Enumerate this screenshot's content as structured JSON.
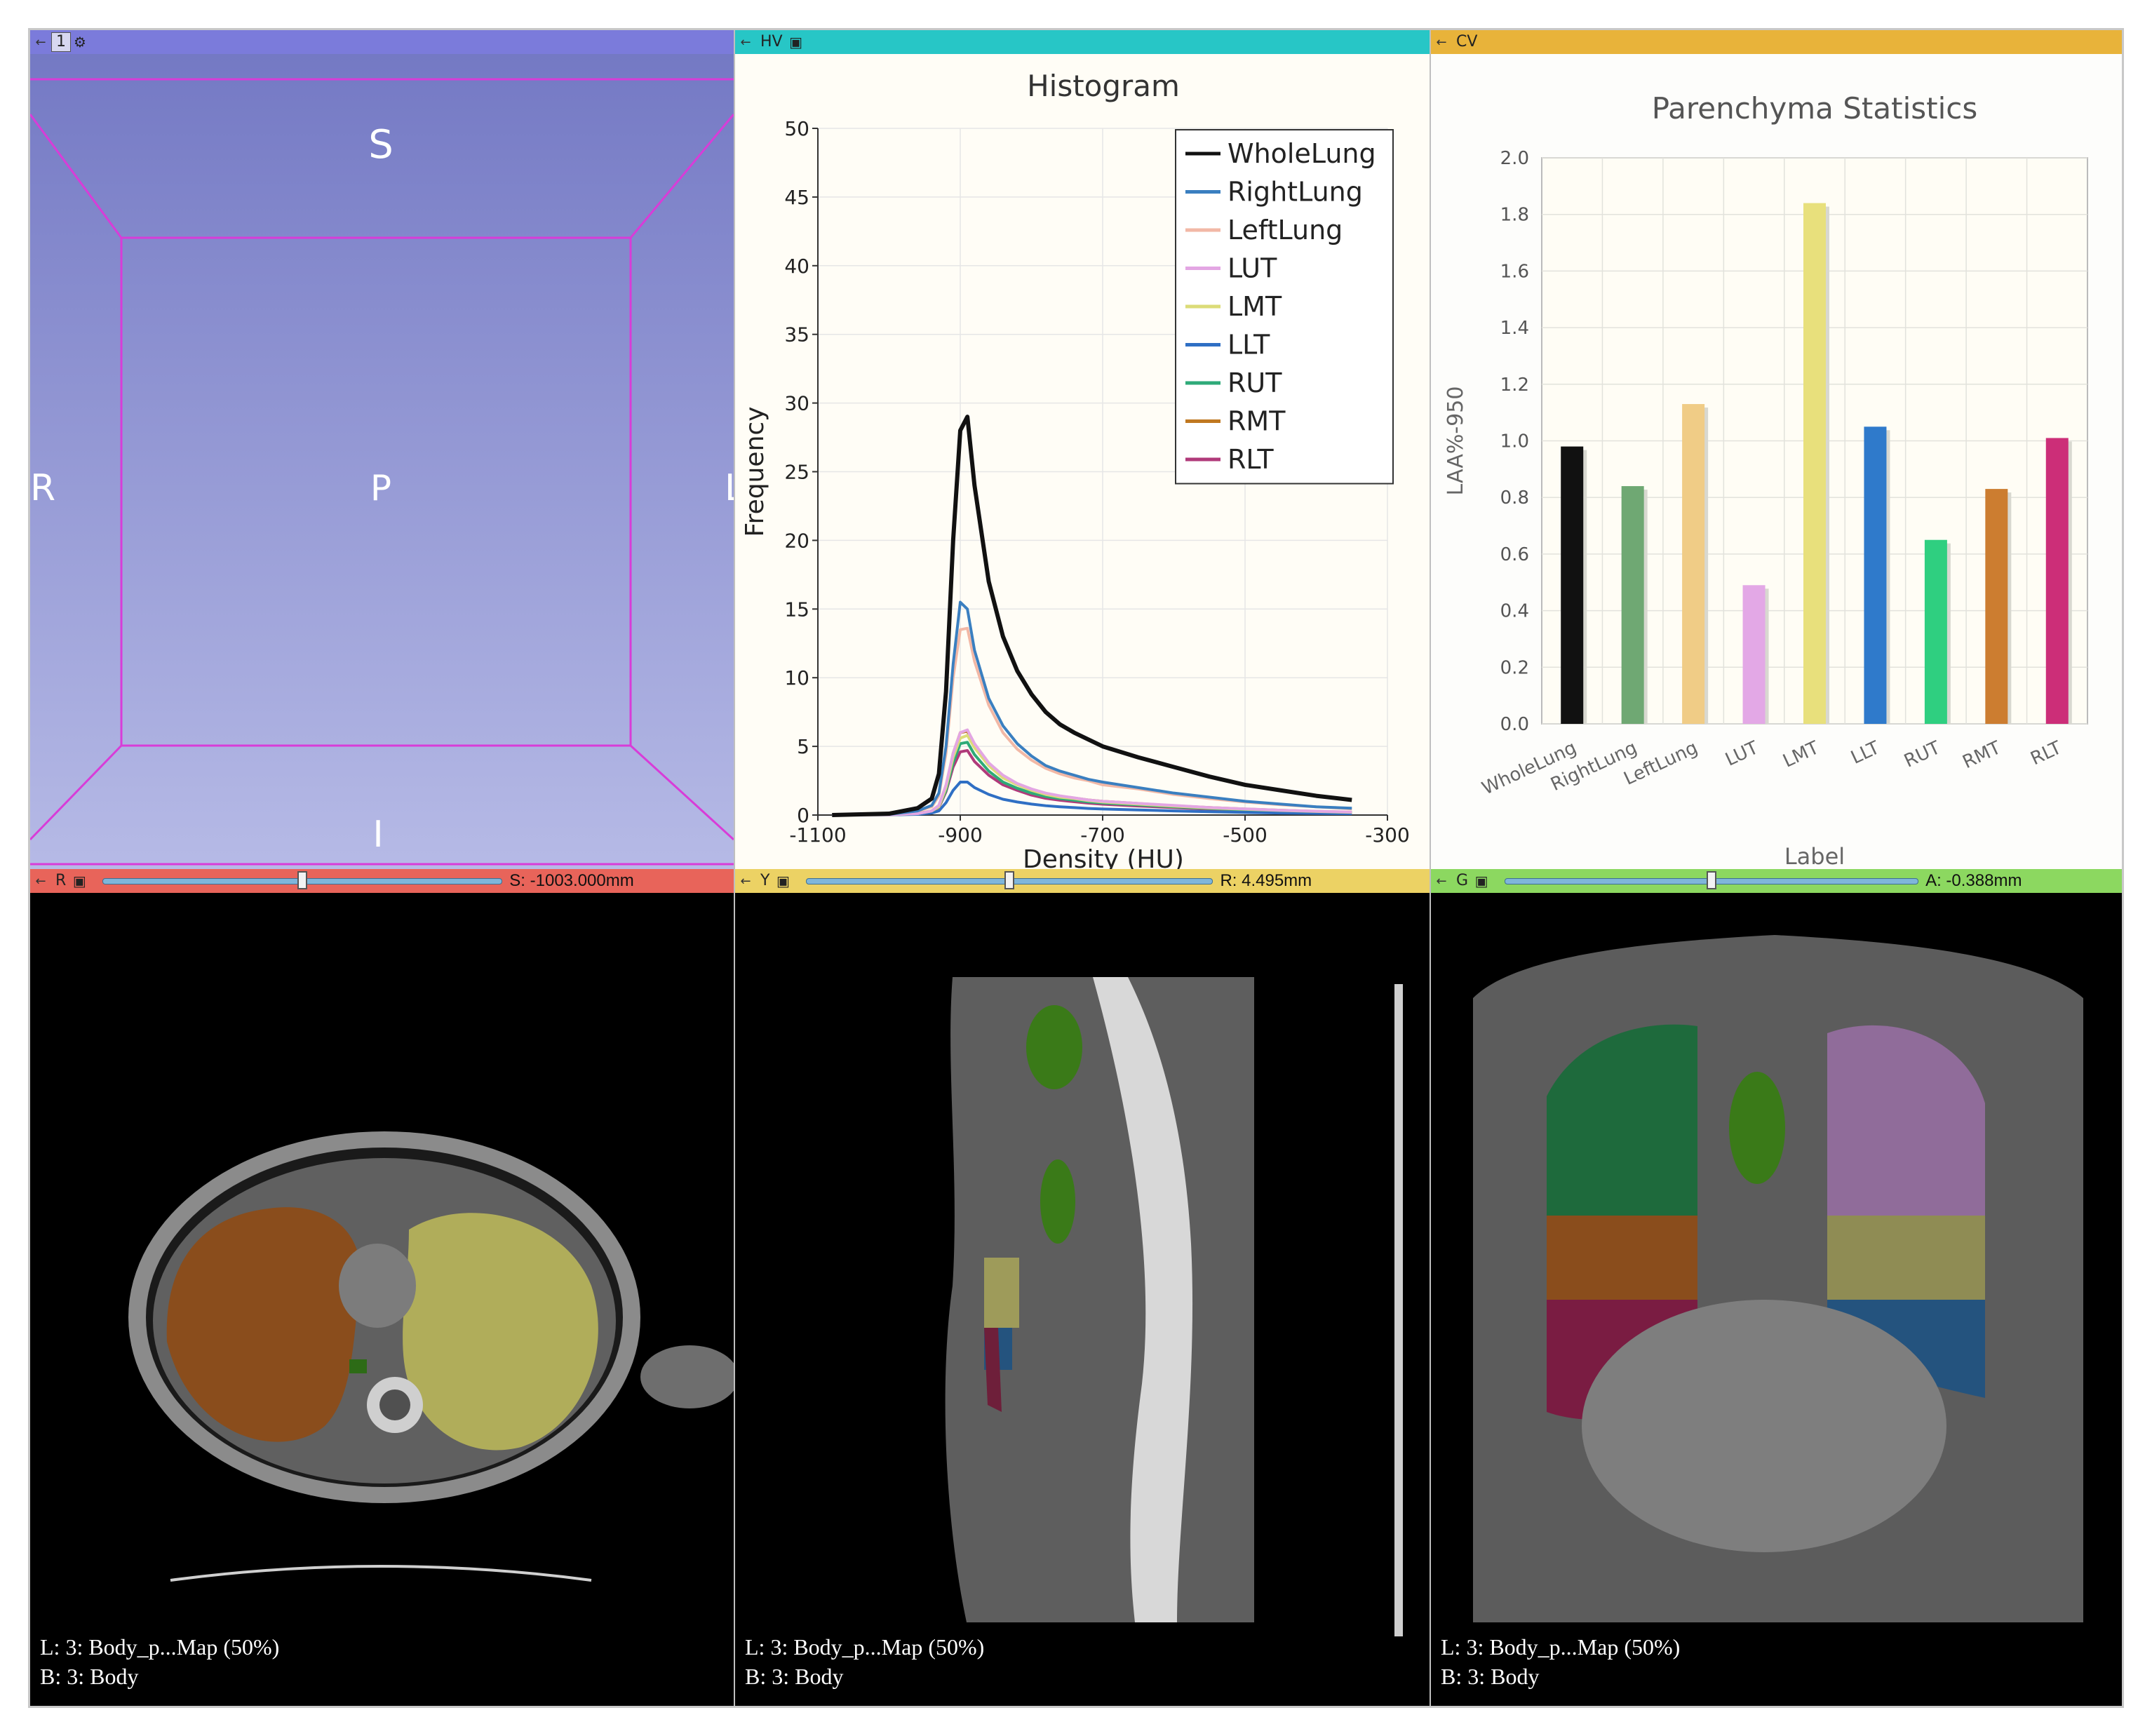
{
  "panes": {
    "view3d": {
      "header": {
        "tag": "1",
        "pin_icon": "pin-icon",
        "gear_icon": "gear-icon",
        "color": "#7b7bdb"
      },
      "orientation": {
        "top": "S",
        "left": "R",
        "center": "P",
        "right": "L",
        "bottom": "I"
      },
      "colors": {
        "bg_top": "#7479c4",
        "bg_bottom": "#b6bae6",
        "box": "#d83cd8"
      }
    },
    "histogram_view": {
      "header": {
        "tag": "HV",
        "color": "#27c6c6"
      }
    },
    "chart_view": {
      "header": {
        "tag": "CV",
        "color": "#e8b33a"
      }
    },
    "red": {
      "header": {
        "tag": "R",
        "value": "S: -1003.000mm",
        "color": "#e8645a",
        "slider_position": 0.5
      },
      "overlay": {
        "line1": "L: 3: Body_p...Map (50%)",
        "line2": "B: 3: Body"
      }
    },
    "yellow": {
      "header": {
        "tag": "Y",
        "value": "R: 4.495mm",
        "color": "#ecd264",
        "slider_position": 0.5
      },
      "overlay": {
        "line1": "L: 3: Body_p...Map (50%)",
        "line2": "B: 3: Body"
      }
    },
    "green": {
      "header": {
        "tag": "G",
        "value": "A: -0.388mm",
        "color": "#8cd860",
        "slider_position": 0.5
      },
      "overlay": {
        "line1": "L: 3: Body_p...Map (50%)",
        "line2": "B: 3: Body"
      }
    }
  },
  "chart_data": [
    {
      "type": "line",
      "title": "Histogram",
      "xlabel": "Density (HU)",
      "ylabel": "Frequency",
      "xlim": [
        -1100,
        -300
      ],
      "ylim": [
        0,
        50
      ],
      "xticks": [
        "-1100",
        "-900",
        "-700",
        "-500",
        "-300"
      ],
      "yticks": [
        "0",
        "5",
        "10",
        "15",
        "20",
        "25",
        "30",
        "35",
        "40",
        "45",
        "50"
      ],
      "grid": true,
      "legend_position": "top-right",
      "x": [
        -1080,
        -1000,
        -960,
        -940,
        -930,
        -920,
        -910,
        -900,
        -890,
        -880,
        -860,
        -840,
        -820,
        -800,
        -780,
        -760,
        -740,
        -720,
        -700,
        -650,
        -600,
        -550,
        -500,
        -450,
        -400,
        -350
      ],
      "series": [
        {
          "name": "WholeLung",
          "color": "#111111",
          "values": [
            0,
            0.1,
            0.5,
            1.2,
            3,
            9,
            20,
            28,
            29,
            24,
            17,
            13,
            10.5,
            8.8,
            7.5,
            6.6,
            6,
            5.5,
            5,
            4.2,
            3.5,
            2.8,
            2.2,
            1.8,
            1.4,
            1.1
          ]
        },
        {
          "name": "RightLung",
          "color": "#3a7fc0",
          "values": [
            0,
            0.05,
            0.3,
            0.7,
            1.6,
            5,
            11,
            15.5,
            15,
            12,
            8.5,
            6.5,
            5.2,
            4.3,
            3.6,
            3.2,
            2.9,
            2.6,
            2.4,
            2.0,
            1.6,
            1.3,
            1.0,
            0.8,
            0.6,
            0.5
          ]
        },
        {
          "name": "LeftLung",
          "color": "#f2b8a6",
          "values": [
            0,
            0.05,
            0.3,
            0.6,
            1.4,
            4.5,
            10,
            13.5,
            13.6,
            11.2,
            8,
            6,
            4.8,
            4,
            3.4,
            3.0,
            2.7,
            2.5,
            2.2,
            1.9,
            1.5,
            1.2,
            0.95,
            0.75,
            0.6,
            0.45
          ]
        },
        {
          "name": "LUT",
          "color": "#e3a6e3",
          "values": [
            0,
            0.02,
            0.1,
            0.3,
            0.7,
            2.2,
            4.5,
            6,
            6.2,
            5.2,
            3.8,
            2.9,
            2.3,
            1.9,
            1.6,
            1.4,
            1.25,
            1.1,
            1.0,
            0.85,
            0.7,
            0.55,
            0.45,
            0.35,
            0.28,
            0.22
          ]
        },
        {
          "name": "LMT",
          "color": "#dcdc78",
          "values": [
            0,
            0.02,
            0.1,
            0.3,
            0.6,
            2.0,
            4.2,
            5.6,
            5.8,
            4.9,
            3.6,
            2.7,
            2.2,
            1.8,
            1.5,
            1.3,
            1.2,
            1.05,
            0.95,
            0.8,
            0.65,
            0.52,
            0.42,
            0.33,
            0.26,
            0.2
          ]
        },
        {
          "name": "LLT",
          "color": "#2f6fc4",
          "values": [
            0,
            0.01,
            0.05,
            0.15,
            0.3,
            0.9,
            1.8,
            2.4,
            2.4,
            2.0,
            1.5,
            1.15,
            0.95,
            0.8,
            0.68,
            0.6,
            0.54,
            0.48,
            0.44,
            0.37,
            0.3,
            0.24,
            0.19,
            0.15,
            0.12,
            0.1
          ]
        },
        {
          "name": "RUT",
          "color": "#2eaa78",
          "values": [
            0,
            0.02,
            0.1,
            0.25,
            0.6,
            1.8,
            3.8,
            5.2,
            5.3,
            4.4,
            3.2,
            2.4,
            1.95,
            1.6,
            1.35,
            1.2,
            1.08,
            0.96,
            0.88,
            0.74,
            0.6,
            0.48,
            0.38,
            0.3,
            0.24,
            0.19
          ]
        },
        {
          "name": "RMT",
          "color": "#c07820",
          "values": [
            0,
            0.02,
            0.12,
            0.3,
            0.7,
            2.1,
            4.5,
            6,
            6.1,
            5.0,
            3.7,
            2.8,
            2.25,
            1.85,
            1.55,
            1.38,
            1.24,
            1.1,
            1.0,
            0.84,
            0.68,
            0.55,
            0.44,
            0.35,
            0.27,
            0.21
          ]
        },
        {
          "name": "RLT",
          "color": "#b03a7a",
          "values": [
            0,
            0.02,
            0.1,
            0.25,
            0.55,
            1.7,
            3.5,
            4.6,
            4.7,
            3.9,
            2.9,
            2.2,
            1.8,
            1.45,
            1.22,
            1.08,
            0.97,
            0.87,
            0.79,
            0.66,
            0.54,
            0.43,
            0.34,
            0.27,
            0.21,
            0.17
          ]
        }
      ]
    },
    {
      "type": "bar",
      "title": "Parenchyma Statistics",
      "xlabel": "Label",
      "ylabel": "LAA%-950",
      "ylim": [
        0,
        2.0
      ],
      "yticks": [
        "0.0",
        "0.2",
        "0.4",
        "0.6",
        "0.8",
        "1.0",
        "1.2",
        "1.4",
        "1.6",
        "1.8",
        "2.0"
      ],
      "grid": true,
      "categories": [
        "WholeLung",
        "RightLung",
        "LeftLung",
        "LUT",
        "LMT",
        "LLT",
        "RUT",
        "RMT",
        "RLT"
      ],
      "values": [
        0.98,
        0.84,
        1.13,
        0.49,
        1.84,
        1.05,
        0.65,
        0.83,
        1.01
      ],
      "colors": [
        "#111111",
        "#6fa873",
        "#f0cc86",
        "#e3a8e6",
        "#e8e07c",
        "#2f7acb",
        "#2fcf80",
        "#cc7d30",
        "#cc2e78"
      ]
    }
  ]
}
